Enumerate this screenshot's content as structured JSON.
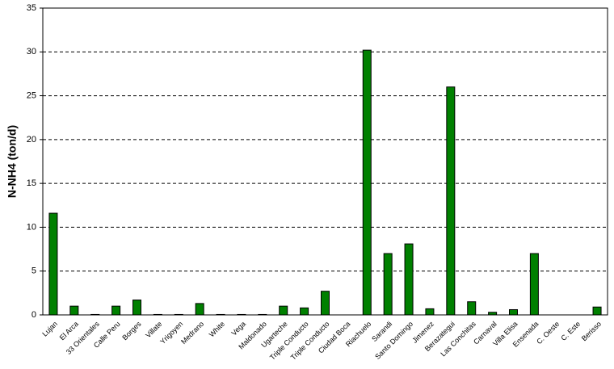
{
  "chart_data": {
    "type": "bar",
    "y_label": "N-NH4 (ton/d)",
    "categories": [
      "Lujan",
      "El Arca",
      "33 Orientales",
      "Calle Peru",
      "Borges",
      "Villate",
      "Yrigoyen",
      "Medrano",
      "White",
      "Vega",
      "Maldonado",
      "Ugarteche",
      "Triple Conducto",
      "Triple Conducto",
      "Ciudad Boca",
      "Riachuelo",
      "Sarandi",
      "Santo Domingo",
      "Jimenez",
      "Berazategui",
      "Las Conchitas",
      "Carnaval",
      "Villa Elisa",
      "Ensenada",
      "C. Oeste",
      "C. Este",
      "Berisso"
    ],
    "values": [
      11.6,
      1.0,
      0.05,
      1.0,
      1.7,
      0.05,
      0.05,
      1.3,
      0.05,
      0.05,
      0.05,
      1.0,
      0.8,
      2.7,
      0,
      30.2,
      7.0,
      8.1,
      0.7,
      26.0,
      1.5,
      0.3,
      0.6,
      7.0,
      0,
      0,
      0.9
    ],
    "color": "#008000",
    "ylim": [
      0,
      35
    ],
    "yticks": [
      0,
      5,
      10,
      15,
      20,
      25,
      30,
      35
    ],
    "grid": true
  }
}
